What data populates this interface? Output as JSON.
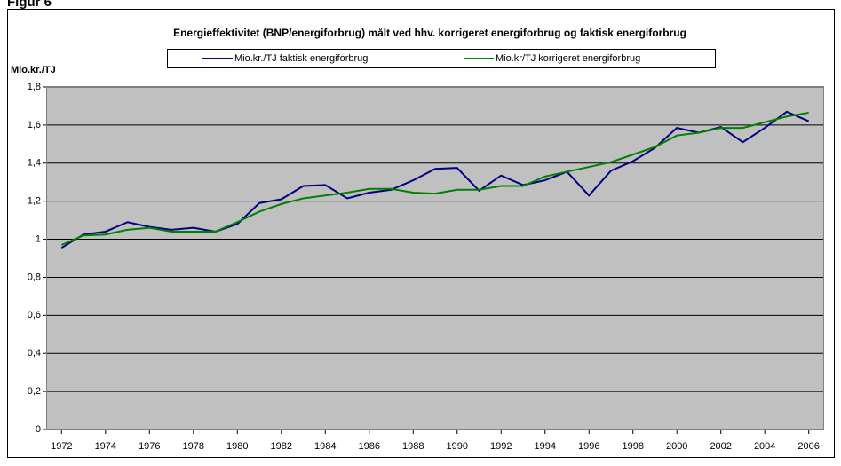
{
  "figure_label": "Figur 6",
  "chart_data": {
    "type": "line",
    "title": "Energieffektivitet (BNP/energiforbrug) målt ved hhv. korrigeret energiforbrug og faktisk energiforbrug",
    "y_label": "Mio.kr./TJ",
    "x": [
      1972,
      1973,
      1974,
      1975,
      1976,
      1977,
      1978,
      1979,
      1980,
      1981,
      1982,
      1983,
      1984,
      1985,
      1986,
      1987,
      1988,
      1989,
      1990,
      1991,
      1992,
      1993,
      1994,
      1995,
      1996,
      1997,
      1998,
      1999,
      2000,
      2001,
      2002,
      2003,
      2004,
      2005,
      2006
    ],
    "series": [
      {
        "name": "Mio.kr./TJ faktisk energiforbrug",
        "color": "#000080",
        "values": [
          0.955,
          1.025,
          1.04,
          1.09,
          1.065,
          1.05,
          1.06,
          1.04,
          1.08,
          1.19,
          1.21,
          1.28,
          1.285,
          1.215,
          1.245,
          1.26,
          1.31,
          1.37,
          1.375,
          1.255,
          1.335,
          1.285,
          1.31,
          1.355,
          1.23,
          1.36,
          1.41,
          1.48,
          1.585,
          1.56,
          1.59,
          1.51,
          1.585,
          1.67,
          1.62
        ]
      },
      {
        "name": "Mio.kr/TJ korrigeret energiforbrug",
        "color": "#008000",
        "values": [
          0.97,
          1.02,
          1.025,
          1.05,
          1.06,
          1.04,
          1.04,
          1.04,
          1.09,
          1.145,
          1.185,
          1.215,
          1.23,
          1.245,
          1.265,
          1.265,
          1.245,
          1.24,
          1.26,
          1.26,
          1.28,
          1.28,
          1.33,
          1.355,
          1.38,
          1.405,
          1.445,
          1.485,
          1.545,
          1.56,
          1.585,
          1.585,
          1.615,
          1.645,
          1.665
        ]
      }
    ],
    "xlim": [
      1971.3,
      2006.7
    ],
    "xticks": [
      1972,
      1974,
      1976,
      1978,
      1980,
      1982,
      1984,
      1986,
      1988,
      1990,
      1992,
      1994,
      1996,
      1998,
      2000,
      2002,
      2004,
      2006
    ],
    "ylim": [
      0,
      1.8
    ],
    "yticks": [
      0,
      {
        "value": 0.2,
        "label": "0,2"
      },
      {
        "value": 0.4,
        "label": "0,4"
      },
      {
        "value": 0.6,
        "label": "0,6"
      },
      {
        "value": 0.8,
        "label": "0,8"
      },
      1,
      {
        "value": 1.2,
        "label": "1,2"
      },
      {
        "value": 1.4,
        "label": "1,4"
      },
      {
        "value": 1.6,
        "label": "1,6"
      },
      {
        "value": 1.8,
        "label": "1,8"
      }
    ],
    "grid": true,
    "legend": "top"
  }
}
